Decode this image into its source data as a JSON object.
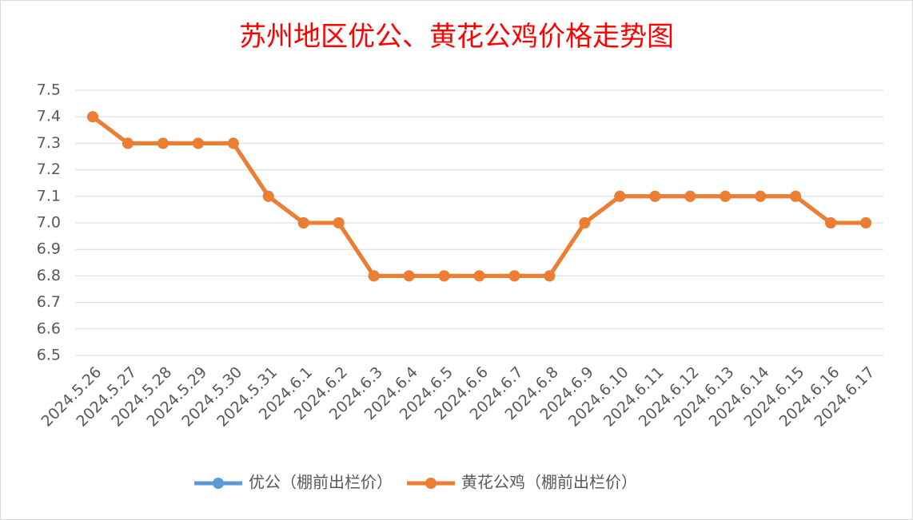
{
  "chart_data": {
    "type": "line",
    "title": "苏州地区优公、黄花公鸡价格走势图",
    "categories": [
      "2024.5.26",
      "2024.5.27",
      "2024.5.28",
      "2024.5.29",
      "2024.5.30",
      "2024.5.31",
      "2024.6.1",
      "2024.6.2",
      "2024.6.3",
      "2024.6.4",
      "2024.6.5",
      "2024.6.6",
      "2024.6.7",
      "2024.6.8",
      "2024.6.9",
      "2024.6.10",
      "2024.6.11",
      "2024.6.12",
      "2024.6.13",
      "2024.6.14",
      "2024.6.15",
      "2024.6.16",
      "2024.6.17"
    ],
    "series": [
      {
        "name": "优公（棚前出栏价）",
        "color": "#5b9bd5",
        "values": [
          7.4,
          7.3,
          7.3,
          7.3,
          7.3,
          7.1,
          7.0,
          7.0,
          6.8,
          6.8,
          6.8,
          6.8,
          6.8,
          6.8,
          7.0,
          7.1,
          7.1,
          7.1,
          7.1,
          7.1,
          7.1,
          7.0,
          7.0
        ]
      },
      {
        "name": "黄花公鸡（棚前出栏价）",
        "color": "#ed7d31",
        "values": [
          7.4,
          7.3,
          7.3,
          7.3,
          7.3,
          7.1,
          7.0,
          7.0,
          6.8,
          6.8,
          6.8,
          6.8,
          6.8,
          6.8,
          7.0,
          7.1,
          7.1,
          7.1,
          7.1,
          7.1,
          7.1,
          7.0,
          7.0
        ]
      }
    ],
    "ylim": [
      6.5,
      7.5
    ],
    "yticks": [
      6.5,
      6.6,
      6.7,
      6.8,
      6.9,
      {
        "value": 7,
        "label": "7.0"
      },
      7.1,
      7.2,
      7.3,
      7.4,
      7.5
    ],
    "grid": true,
    "legend": "bottom"
  }
}
